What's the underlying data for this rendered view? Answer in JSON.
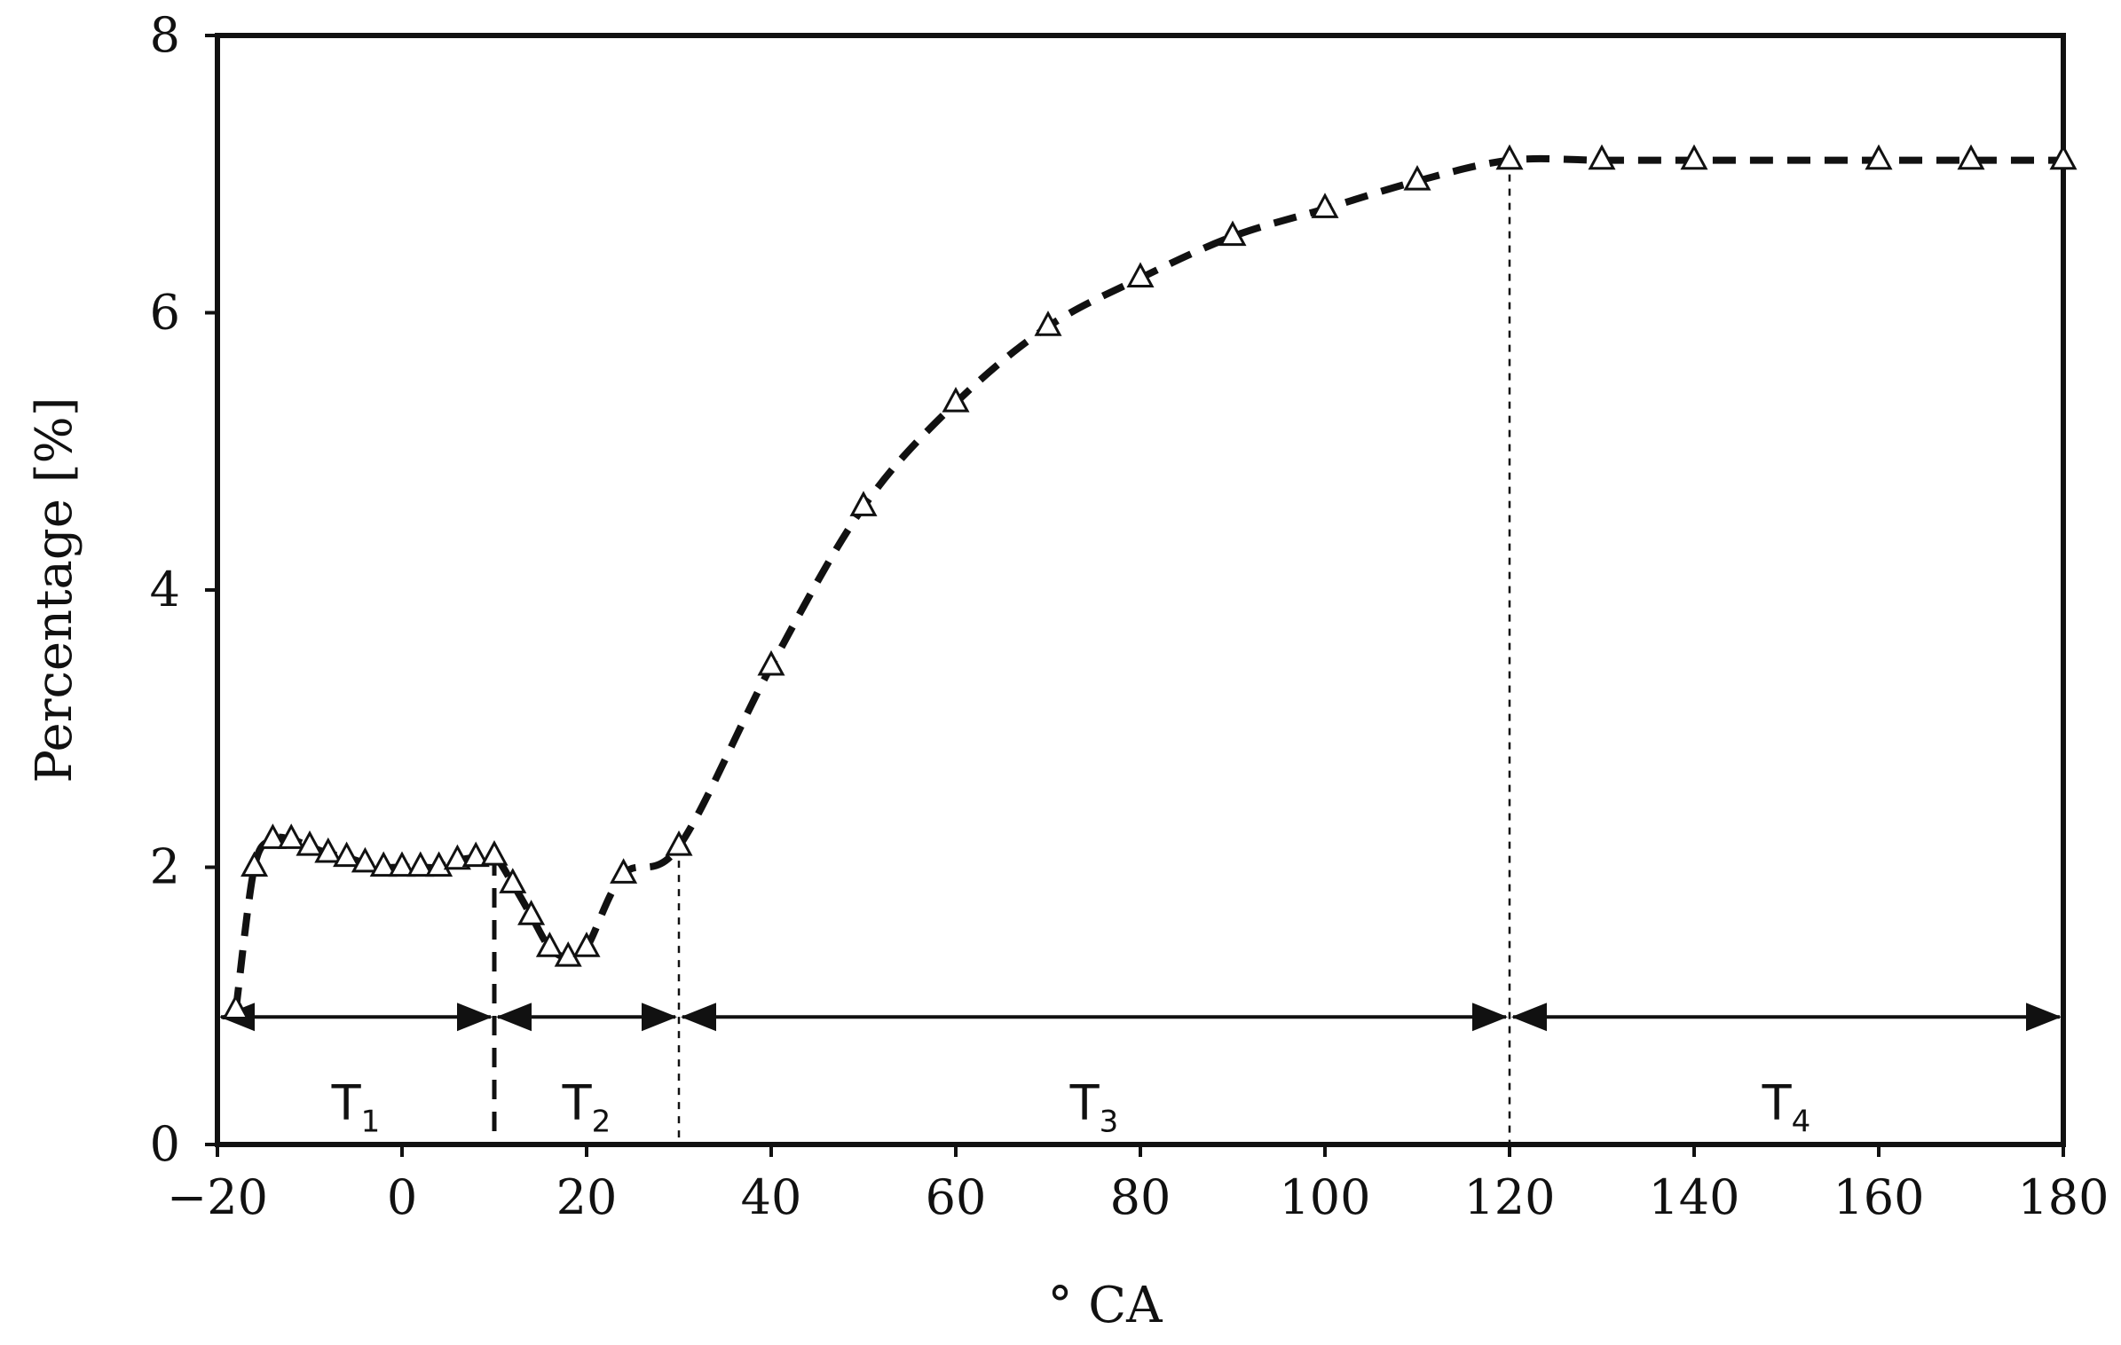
{
  "chart_data": {
    "type": "line",
    "title": "",
    "xlabel": "° CA",
    "ylabel": "Percentage [%]",
    "xlim": [
      -20,
      180
    ],
    "ylim": [
      0,
      8
    ],
    "grid": false,
    "x_ticks": [
      -20,
      0,
      20,
      40,
      60,
      80,
      100,
      120,
      140,
      160,
      180
    ],
    "x_tick_labels": [
      "−20",
      "0",
      "20",
      "40",
      "60",
      "80",
      "100",
      "120",
      "140",
      "160",
      "180"
    ],
    "y_ticks": [
      0,
      2,
      4,
      6,
      8
    ],
    "y_tick_labels": [
      "0",
      "2",
      "4",
      "6",
      "8"
    ],
    "series": [
      {
        "marker": "open-triangle",
        "line_style": "dashed",
        "color": "#111111",
        "x": [
          -18,
          -16,
          -14,
          -12,
          -10,
          -8,
          -6,
          -4,
          -2,
          0,
          2,
          4,
          6,
          8,
          10,
          12,
          14,
          16,
          18,
          20,
          24,
          30,
          40,
          50,
          60,
          70,
          80,
          90,
          100,
          110,
          120,
          130,
          140,
          160,
          170,
          180
        ],
        "values": [
          0.97,
          2.0,
          2.2,
          2.2,
          2.15,
          2.1,
          2.07,
          2.03,
          2.0,
          2.0,
          2.0,
          2.0,
          2.05,
          2.07,
          2.08,
          1.88,
          1.65,
          1.42,
          1.35,
          1.42,
          1.95,
          2.15,
          3.45,
          4.6,
          5.35,
          5.9,
          6.25,
          6.55,
          6.75,
          6.95,
          7.1,
          7.1,
          7.1,
          7.1,
          7.1,
          7.1
        ]
      }
    ],
    "vertical_markers": [
      {
        "x": 10,
        "style": "dashed"
      },
      {
        "x": 30,
        "style": "dotted"
      },
      {
        "x": 120,
        "style": "dotted"
      }
    ],
    "phases": [
      {
        "label": "T",
        "subscript": "1",
        "from": -20,
        "to": 10
      },
      {
        "label": "T",
        "subscript": "2",
        "from": 10,
        "to": 30
      },
      {
        "label": "T",
        "subscript": "3",
        "from": 30,
        "to": 120
      },
      {
        "label": "T",
        "subscript": "4",
        "from": 120,
        "to": 180
      }
    ],
    "phase_arrow_y": 0.92
  }
}
